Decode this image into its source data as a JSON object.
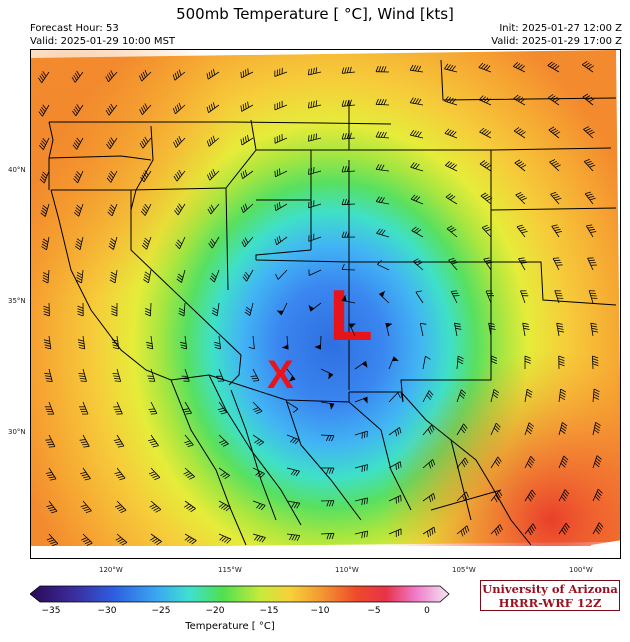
{
  "header": {
    "title": "500mb Temperature [$^\\circ$C], Wind [kts]",
    "title_display": "500mb Temperature [ °C], Wind [kts]",
    "forecast_hour": "Forecast Hour: 53",
    "valid_local": "Valid: 2025-01-29 10:00 MST",
    "init": "Init: 2025-01-27 12:00 Z",
    "valid_utc": "Valid: 2025-01-29 17:00 Z"
  },
  "map": {
    "lat_labels": [
      "40°N",
      "35°N",
      "30°N"
    ],
    "lon_labels": [
      "120°W",
      "115°W",
      "110°W",
      "105°W",
      "100°W"
    ],
    "low_marker": "L",
    "point_marker": "X",
    "marker_color": "#e8141c"
  },
  "colorbar": {
    "label": "Temperature [$^\\circ$C]",
    "label_display": "Temperature [ °C]",
    "ticks": [
      "−35",
      "−30",
      "−25",
      "−20",
      "−15",
      "−10",
      "−5",
      "0"
    ],
    "range": [
      -37,
      0
    ]
  },
  "branding": {
    "line1": "University of Arizona",
    "line2": "HRRR-WRF 12Z",
    "color": "#9b0f1f"
  }
}
